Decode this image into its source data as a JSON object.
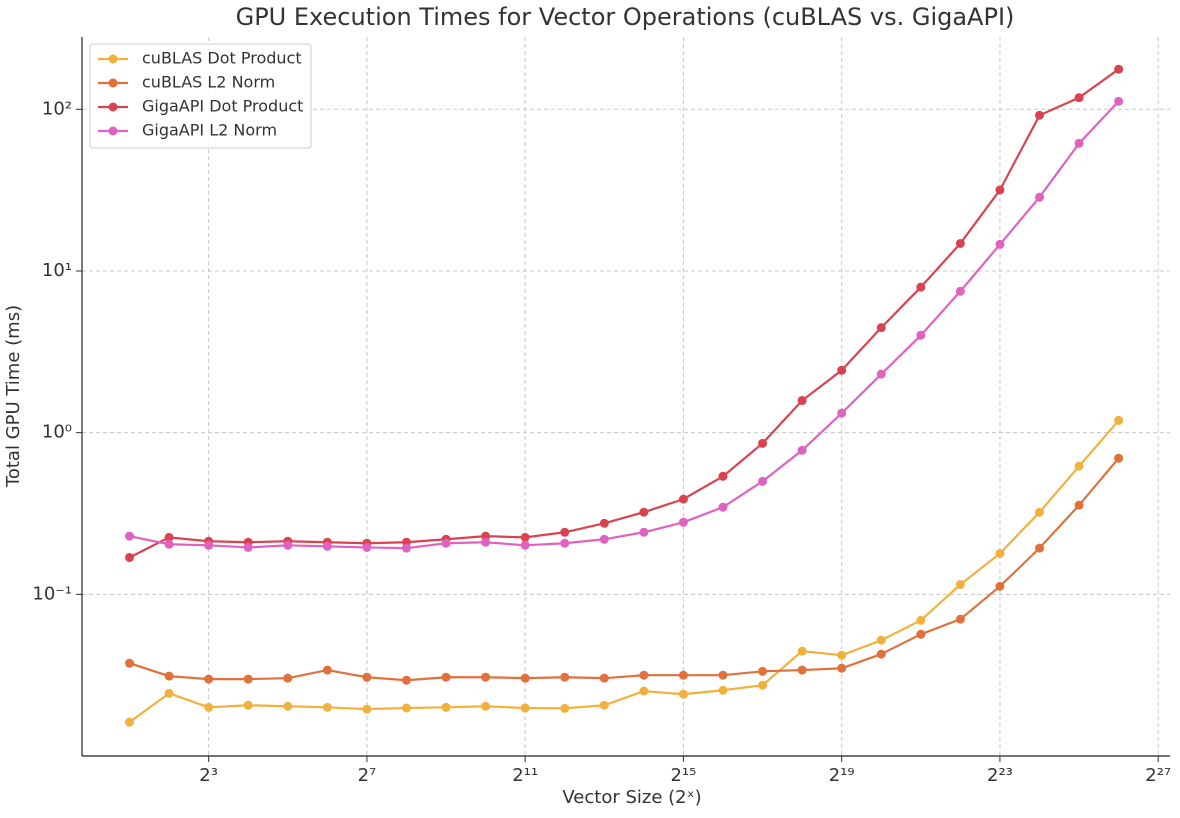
{
  "chart_data": {
    "type": "line",
    "title": "GPU Execution Times for Vector Operations (cuBLAS vs. GigaAPI)",
    "xlabel": "Vector Size (2ˣ)",
    "ylabel": "Total GPU Time (ms)",
    "xscale": "log",
    "yscale": "log",
    "grid": true,
    "legend": "upper left",
    "x": [
      2,
      4,
      8,
      16,
      32,
      64,
      128,
      256,
      512,
      1024,
      2048,
      4096,
      8192,
      16384,
      32768,
      65536,
      131072,
      262144,
      524288,
      1048576,
      2097152,
      4194304,
      8388608,
      16777216,
      33554432,
      67108864
    ],
    "xlim": [
      0.87,
      165000000
    ],
    "xticks": [
      {
        "value": 8,
        "label": "2³"
      },
      {
        "value": 128,
        "label": "2⁷"
      },
      {
        "value": 2048,
        "label": "2¹¹"
      },
      {
        "value": 32768,
        "label": "2¹⁵"
      },
      {
        "value": 524288,
        "label": "2¹⁹"
      },
      {
        "value": 8388608,
        "label": "2²³"
      },
      {
        "value": 134217728,
        "label": "2²⁷"
      }
    ],
    "ylim": [
      0.01,
      280
    ],
    "yticks": [
      {
        "value": 0.1,
        "label": "10⁻¹"
      },
      {
        "value": 1,
        "label": "10⁰"
      },
      {
        "value": 10,
        "label": "10¹"
      },
      {
        "value": 100,
        "label": "10²"
      }
    ],
    "series": [
      {
        "name": "cuBLAS Dot Product",
        "color": "#f0b13e",
        "values": [
          0.0162,
          0.0244,
          0.02,
          0.0206,
          0.0203,
          0.02,
          0.0195,
          0.0198,
          0.02,
          0.0203,
          0.0198,
          0.0197,
          0.0206,
          0.0252,
          0.0241,
          0.0255,
          0.0274,
          0.0445,
          0.042,
          0.052,
          0.069,
          0.115,
          0.179,
          0.322,
          0.62,
          1.19
        ]
      },
      {
        "name": "cuBLAS L2 Norm",
        "color": "#e0703c",
        "values": [
          0.0375,
          0.0312,
          0.0299,
          0.0299,
          0.0303,
          0.034,
          0.0307,
          0.0294,
          0.0307,
          0.0307,
          0.0303,
          0.0307,
          0.0303,
          0.0316,
          0.0316,
          0.0316,
          0.0334,
          0.034,
          0.0349,
          0.0427,
          0.0566,
          0.0702,
          0.112,
          0.193,
          0.356,
          0.695
        ]
      },
      {
        "name": "GigaAPI Dot Product",
        "color": "#d8434f",
        "values": [
          0.169,
          0.225,
          0.213,
          0.21,
          0.213,
          0.21,
          0.207,
          0.21,
          0.219,
          0.229,
          0.225,
          0.242,
          0.275,
          0.322,
          0.388,
          0.537,
          0.859,
          1.58,
          2.43,
          4.46,
          7.94,
          14.8,
          31.7,
          91.8,
          118,
          177
        ]
      },
      {
        "name": "GigaAPI L2 Norm",
        "color": "#e062c0",
        "values": [
          0.229,
          0.204,
          0.201,
          0.195,
          0.201,
          0.198,
          0.195,
          0.193,
          0.207,
          0.21,
          0.201,
          0.207,
          0.219,
          0.242,
          0.279,
          0.346,
          0.5,
          0.778,
          1.32,
          2.3,
          4.0,
          7.49,
          14.6,
          28.6,
          61.6,
          112
        ]
      }
    ]
  }
}
